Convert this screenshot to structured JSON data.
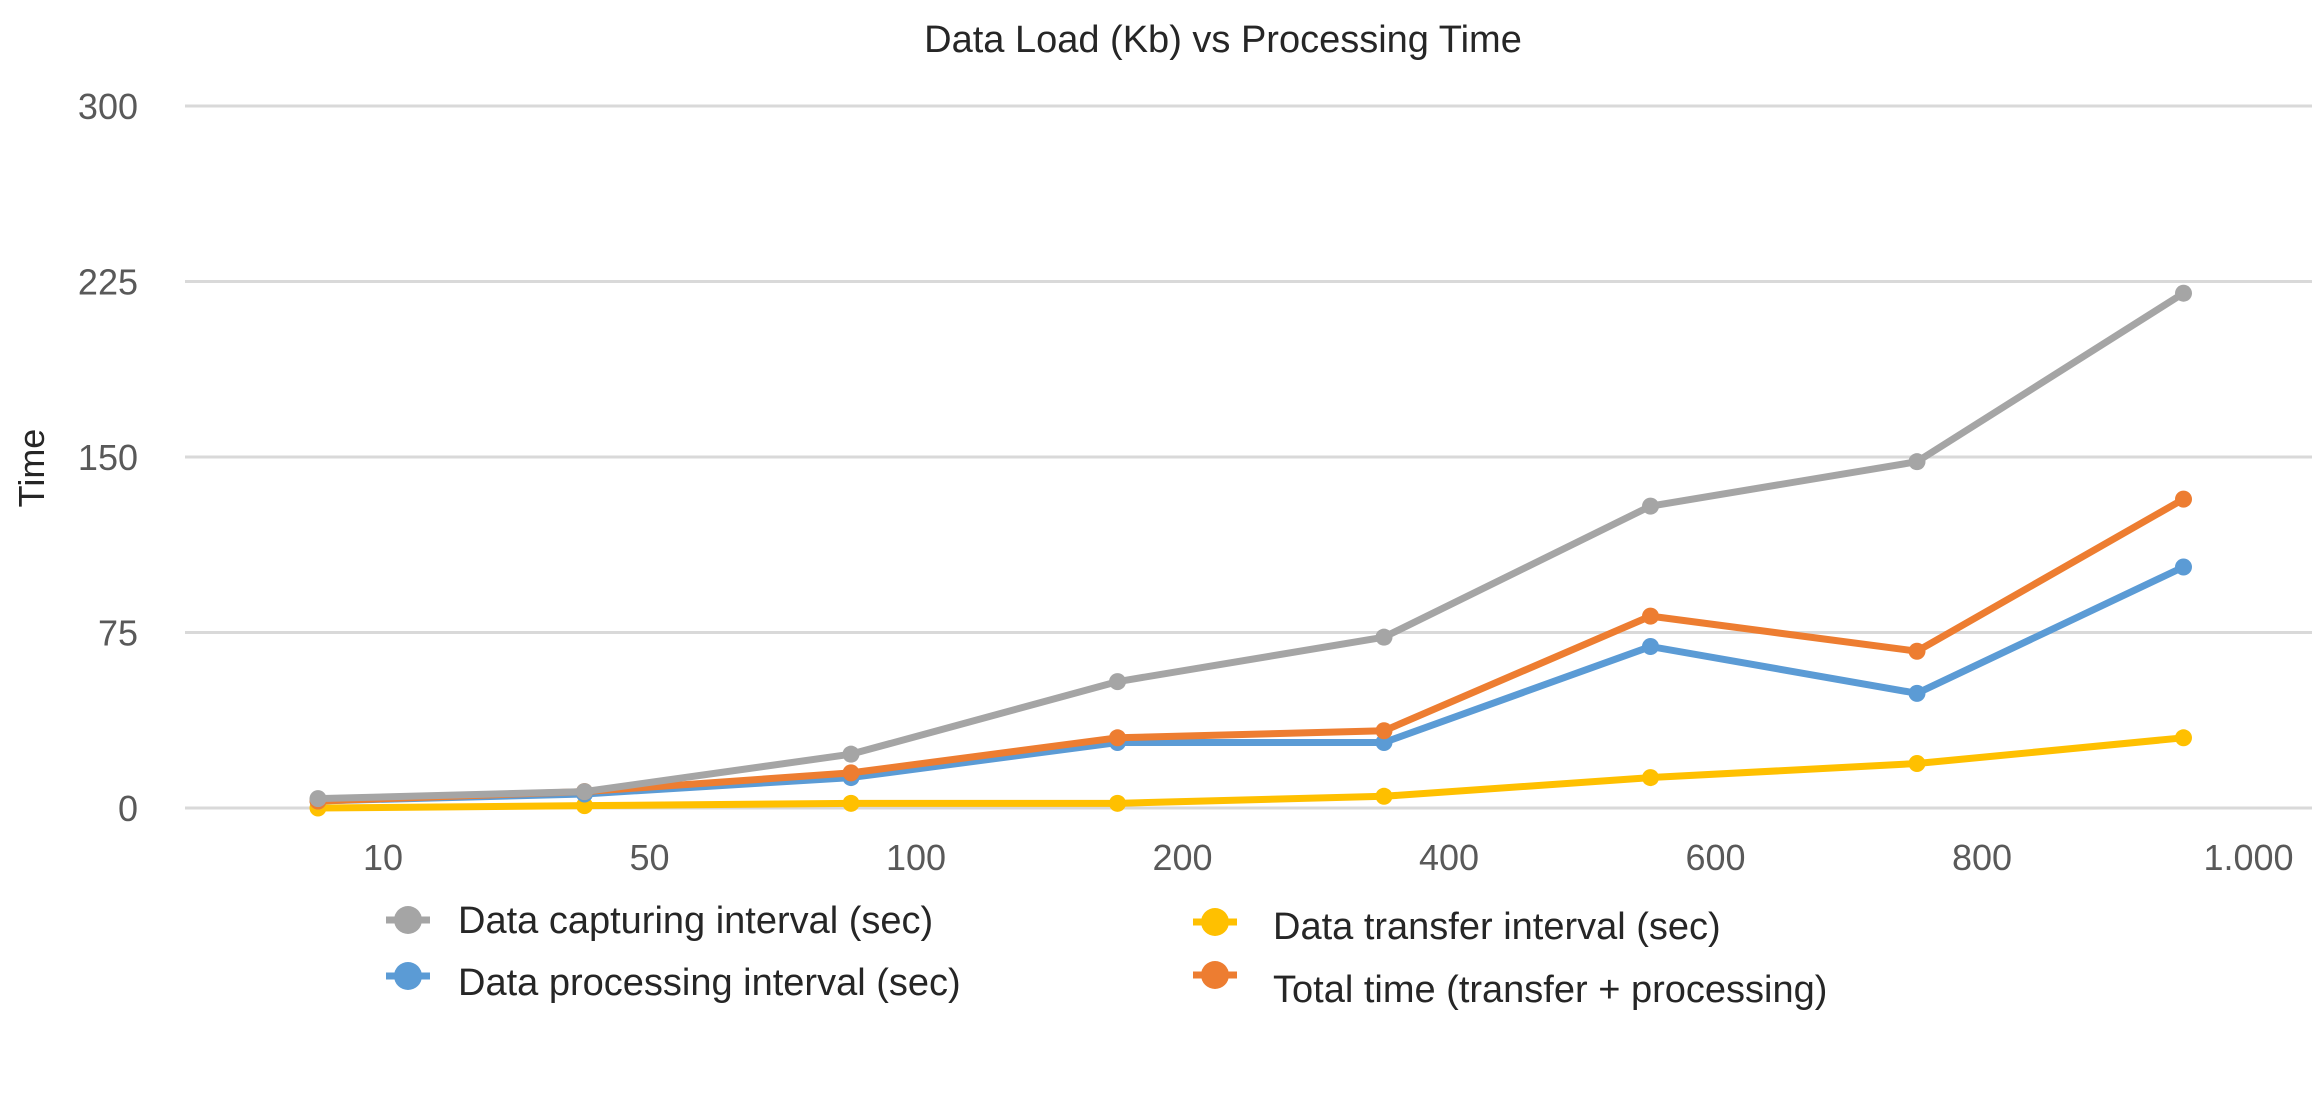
{
  "chart_data": {
    "type": "line",
    "title": "Data Load (Kb) vs Processing Time",
    "xlabel": "",
    "ylabel": "Time",
    "categories": [
      "10",
      "50",
      "100",
      "200",
      "400",
      "600",
      "800",
      "1.000"
    ],
    "yticks": [
      "0",
      "75",
      "150",
      "225",
      "300"
    ],
    "ylim": [
      0,
      300
    ],
    "grid": true,
    "legend_position": "bottom",
    "series": [
      {
        "name": "Data capturing interval (sec)",
        "color": "#a5a5a5",
        "values": [
          4,
          7,
          23,
          54,
          73,
          129,
          148,
          220
        ]
      },
      {
        "name": "Data processing interval (sec)",
        "color": "#5b9bd5",
        "values": [
          3,
          6,
          13,
          28,
          28,
          69,
          49,
          103
        ]
      },
      {
        "name": "Data transfer interval (sec)",
        "color": "#ffc000",
        "values": [
          0,
          1,
          2,
          2,
          5,
          13,
          19,
          30
        ]
      },
      {
        "name": "Total time (transfer + processing)",
        "color": "#ed7d31",
        "values": [
          3,
          7,
          15,
          30,
          33,
          82,
          67,
          132
        ]
      }
    ]
  }
}
